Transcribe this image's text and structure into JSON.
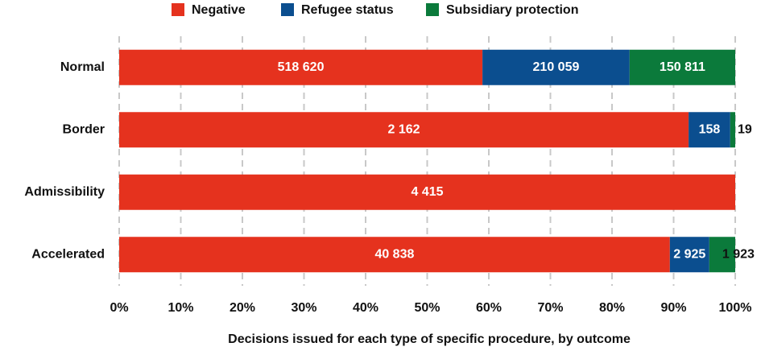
{
  "chart_data": {
    "type": "bar",
    "orientation": "horizontal",
    "stacking": "percent",
    "x_label": "Decisions issued for each type of specific procedure, by outcome",
    "categories": [
      "Normal",
      "Border",
      "Admissibility",
      "Accelerated"
    ],
    "series": [
      {
        "name": "Negative",
        "color": "#e5321e",
        "values": [
          518620,
          2162,
          4415,
          40838
        ],
        "value_labels": [
          "518 620",
          "2 162",
          "4 415",
          "40 838"
        ]
      },
      {
        "name": "Refugee status",
        "color": "#0b4e8f",
        "values": [
          210059,
          158,
          0,
          2925
        ],
        "value_labels": [
          "210 059",
          "158",
          null,
          "2 925"
        ]
      },
      {
        "name": "Subsidiary protection",
        "color": "#0b7a3b",
        "values": [
          150811,
          19,
          0,
          1923
        ],
        "value_labels": [
          "150 811",
          "19",
          null,
          "1 923"
        ]
      }
    ],
    "xlim": [
      0,
      100
    ],
    "xticks": [
      {
        "value": 0,
        "label": "0%"
      },
      {
        "value": 10,
        "label": "10%"
      },
      {
        "value": 20,
        "label": "20%"
      },
      {
        "value": 30,
        "label": "30%"
      },
      {
        "value": 40,
        "label": "40%"
      },
      {
        "value": 50,
        "label": "50%"
      },
      {
        "value": 60,
        "label": "60%"
      },
      {
        "value": 70,
        "label": "70%"
      },
      {
        "value": 80,
        "label": "80%"
      },
      {
        "value": 90,
        "label": "90%"
      },
      {
        "value": 100,
        "label": "100%"
      }
    ],
    "grid": true,
    "legend": "top"
  }
}
